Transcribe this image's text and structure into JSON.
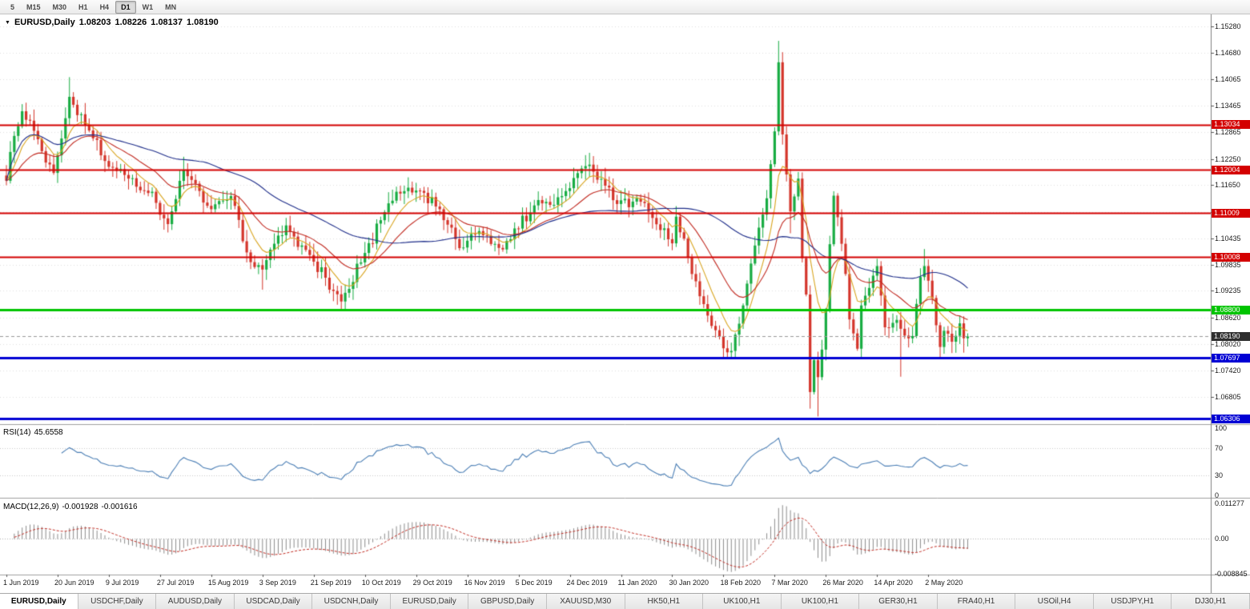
{
  "toolbar": {
    "timeframes": [
      {
        "label": "5",
        "active": false
      },
      {
        "label": "M15",
        "active": false
      },
      {
        "label": "M30",
        "active": false
      },
      {
        "label": "H1",
        "active": false
      },
      {
        "label": "H4",
        "active": false
      },
      {
        "label": "D1",
        "active": true
      },
      {
        "label": "W1",
        "active": false
      },
      {
        "label": "MN",
        "active": false
      }
    ]
  },
  "chart": {
    "symbol_line": {
      "symbol": "EURUSD,Daily",
      "open": "1.08203",
      "high": "1.08226",
      "low": "1.08137",
      "close": "1.08190"
    },
    "price_axis_ticks": [
      "1.15280",
      "1.14680",
      "1.14065",
      "1.13465",
      "1.12865",
      "1.12250",
      "1.11650",
      "1.11035",
      "1.10435",
      "1.09835",
      "1.09235",
      "1.08620",
      "1.08020",
      "1.07420",
      "1.06805"
    ],
    "date_axis": [
      {
        "label": "1 Jun 2019",
        "bar": 0
      },
      {
        "label": "20 Jun 2019",
        "bar": 13
      },
      {
        "label": "9 Jul 2019",
        "bar": 26
      },
      {
        "label": "27 Jul 2019",
        "bar": 39
      },
      {
        "label": "15 Aug 2019",
        "bar": 52
      },
      {
        "label": "3 Sep 2019",
        "bar": 65
      },
      {
        "label": "21 Sep 2019",
        "bar": 78
      },
      {
        "label": "10 Oct 2019",
        "bar": 91
      },
      {
        "label": "29 Oct 2019",
        "bar": 104
      },
      {
        "label": "16 Nov 2019",
        "bar": 117
      },
      {
        "label": "5 Dec 2019",
        "bar": 130
      },
      {
        "label": "24 Dec 2019",
        "bar": 143
      },
      {
        "label": "11 Jan 2020",
        "bar": 156
      },
      {
        "label": "30 Jan 2020",
        "bar": 169
      },
      {
        "label": "18 Feb 2020",
        "bar": 182
      },
      {
        "label": "7 Mar 2020",
        "bar": 195
      },
      {
        "label": "26 Mar 2020",
        "bar": 208
      },
      {
        "label": "14 Apr 2020",
        "bar": 221
      },
      {
        "label": "2 May 2020",
        "bar": 234
      }
    ]
  },
  "rsi": {
    "label": "RSI(14)",
    "value": "45.6558",
    "period": 14,
    "axis": [
      "100",
      "70",
      "30",
      "0"
    ],
    "levels": [
      70,
      30
    ],
    "color": "#4A7EB5"
  },
  "macd": {
    "label": "MACD(12,26,9)",
    "value_main": "-0.001928",
    "value_signal": "-0.001616",
    "axis_top": "0.011277",
    "axis_zero": "0.00",
    "axis_bottom": "-0.008845",
    "histogram_color": "#8C8C8C",
    "signal_color": "#C22B22"
  },
  "chart_data": {
    "type": "candlestick",
    "symbol": "EURUSD",
    "timeframe": "Daily",
    "visible_price_range": [
      1.062,
      1.1555
    ],
    "num_bars": 245,
    "last_ohlc": {
      "open": 1.08203,
      "high": 1.08226,
      "low": 1.08137,
      "close": 1.0819
    },
    "price_anchors": [
      [
        0,
        1.1175
      ],
      [
        1,
        1.1241
      ],
      [
        4,
        1.1334
      ],
      [
        8,
        1.127
      ],
      [
        12,
        1.1193
      ],
      [
        16,
        1.1367
      ],
      [
        21,
        1.129
      ],
      [
        26,
        1.1207
      ],
      [
        31,
        1.118
      ],
      [
        37,
        1.115
      ],
      [
        41,
        1.1076
      ],
      [
        45,
        1.12
      ],
      [
        52,
        1.111
      ],
      [
        57,
        1.114
      ],
      [
        62,
        1.0989
      ],
      [
        65,
        1.0972
      ],
      [
        71,
        1.1073
      ],
      [
        76,
        1.1017
      ],
      [
        85,
        1.0899
      ],
      [
        91,
        1.101
      ],
      [
        99,
        1.115
      ],
      [
        105,
        1.1152
      ],
      [
        110,
        1.111
      ],
      [
        115,
        1.1021
      ],
      [
        120,
        1.106
      ],
      [
        126,
        1.1018
      ],
      [
        135,
        1.1131
      ],
      [
        139,
        1.112
      ],
      [
        148,
        1.1212
      ],
      [
        155,
        1.1122
      ],
      [
        160,
        1.1135
      ],
      [
        164,
        1.109
      ],
      [
        169,
        1.1032
      ],
      [
        170,
        1.1093
      ],
      [
        176,
        1.0911
      ],
      [
        182,
        1.0792
      ],
      [
        184,
        1.0786
      ],
      [
        187,
        1.089
      ],
      [
        190,
        1.1027
      ],
      [
        193,
        1.1135
      ],
      [
        195,
        1.1288
      ],
      [
        196,
        1.1446
      ],
      [
        197,
        1.1281
      ],
      [
        199,
        1.1105
      ],
      [
        201,
        1.118
      ],
      [
        202,
        1.0998
      ],
      [
        203,
        1.0915
      ],
      [
        204,
        1.0692
      ],
      [
        205,
        1.0765
      ],
      [
        206,
        1.0726
      ],
      [
        207,
        1.0789
      ],
      [
        208,
        1.088
      ],
      [
        209,
        1.103
      ],
      [
        210,
        1.1141
      ],
      [
        212,
        1.1031
      ],
      [
        213,
        1.0962
      ],
      [
        214,
        1.0858
      ],
      [
        216,
        1.0791
      ],
      [
        217,
        1.089
      ],
      [
        219,
        1.093
      ],
      [
        221,
        1.098
      ],
      [
        223,
        1.084
      ],
      [
        226,
        1.0857
      ],
      [
        228,
        1.0821
      ],
      [
        230,
        1.082
      ],
      [
        232,
        1.0955
      ],
      [
        233,
        1.098
      ],
      [
        235,
        1.0907
      ],
      [
        237,
        1.0795
      ],
      [
        238,
        1.0832
      ],
      [
        240,
        1.0807
      ],
      [
        242,
        1.0849
      ],
      [
        243,
        1.0815
      ],
      [
        244,
        1.0819
      ]
    ],
    "bar_extremes": [
      {
        "i": 16,
        "high": 1.1412
      },
      {
        "i": 45,
        "high": 1.123
      },
      {
        "i": 65,
        "low": 1.0926
      },
      {
        "i": 85,
        "low": 1.0879
      },
      {
        "i": 148,
        "high": 1.1239
      },
      {
        "i": 184,
        "low": 1.0778
      },
      {
        "i": 196,
        "high": 1.1495
      },
      {
        "i": 199,
        "low": 1.1055
      },
      {
        "i": 204,
        "low": 1.0654
      },
      {
        "i": 206,
        "low": 1.0636
      },
      {
        "i": 227,
        "low": 1.0727
      },
      {
        "i": 233,
        "high": 1.1019
      },
      {
        "i": 237,
        "low": 1.0767
      },
      {
        "i": 243,
        "low": 1.0782
      }
    ],
    "horizontal_lines": [
      {
        "value": 1.13034,
        "label": "1.13034",
        "color": "#D40000",
        "thickness": 2,
        "kind": "resistance"
      },
      {
        "value": 1.12004,
        "label": "1.12004",
        "color": "#D40000",
        "thickness": 2,
        "kind": "resistance"
      },
      {
        "value": 1.11009,
        "label": "1.11009",
        "color": "#D40000",
        "thickness": 2,
        "kind": "resistance"
      },
      {
        "value": 1.10008,
        "label": "1.10008",
        "color": "#D40000",
        "thickness": 2,
        "kind": "resistance"
      },
      {
        "value": 1.088,
        "label": "1.08800",
        "color": "#00C400",
        "thickness": 3,
        "kind": "pivot"
      },
      {
        "value": 1.07697,
        "label": "1.07697",
        "color": "#0000D4",
        "thickness": 3,
        "kind": "support"
      },
      {
        "value": 1.06306,
        "label": "1.06306",
        "color": "#0000D4",
        "thickness": 3,
        "kind": "support"
      }
    ],
    "current_price": {
      "value": 1.0819,
      "label": "1.08190",
      "chip_bg": "#2E2E2E"
    },
    "candle_colors": {
      "bull": "#17AC42",
      "bear": "#D4342A"
    },
    "moving_averages": [
      {
        "kind": "EMA",
        "period": 8,
        "color": "#D9A51F"
      },
      {
        "kind": "EMA",
        "period": 21,
        "color": "#C22B22"
      },
      {
        "kind": "SMA",
        "period": 50,
        "color": "#1F2E8A"
      }
    ]
  },
  "tabs": [
    {
      "label": "EURUSD,Daily",
      "active": true
    },
    {
      "label": "USDCHF,Daily",
      "active": false
    },
    {
      "label": "AUDUSD,Daily",
      "active": false
    },
    {
      "label": "USDCAD,Daily",
      "active": false
    },
    {
      "label": "USDCNH,Daily",
      "active": false
    },
    {
      "label": "EURUSD,Daily",
      "active": false
    },
    {
      "label": "GBPUSD,Daily",
      "active": false
    },
    {
      "label": "XAUUSD,M30",
      "active": false
    },
    {
      "label": "HK50,H1",
      "active": false
    },
    {
      "label": "UK100,H1",
      "active": false
    },
    {
      "label": "UK100,H1",
      "active": false
    },
    {
      "label": "GER30,H1",
      "active": false
    },
    {
      "label": "FRA40,H1",
      "active": false
    },
    {
      "label": "USOil,H4",
      "active": false
    },
    {
      "label": "USDJPY,H1",
      "active": false
    },
    {
      "label": "DJ30,H1",
      "active": false
    }
  ]
}
